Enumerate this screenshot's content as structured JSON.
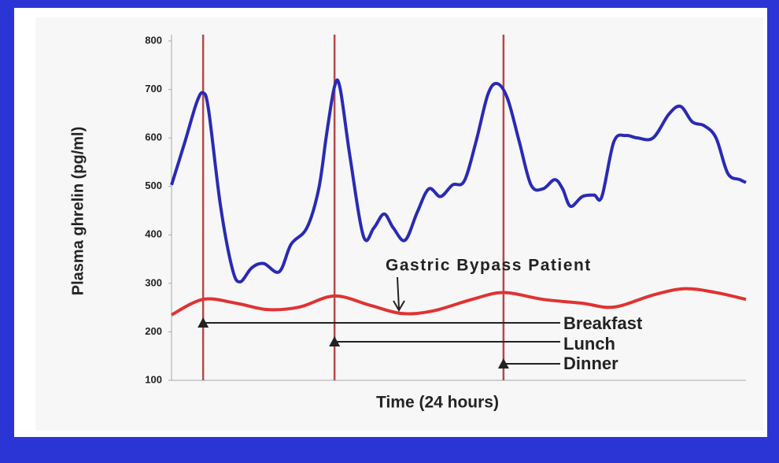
{
  "chart_data": {
    "type": "line",
    "y_label": "Plasma ghrelin (pg/ml)",
    "x_label": "Time (24 hours)",
    "xlim": [
      0,
      24
    ],
    "ylim": [
      100,
      800
    ],
    "yticks": [
      100,
      200,
      300,
      400,
      500,
      600,
      700,
      800
    ],
    "series": [
      {
        "color": "#2a2ab4",
        "x": [
          0,
          0.56,
          1.05,
          1.32,
          1.55,
          2.04,
          2.53,
          2.86,
          3.35,
          3.85,
          4.5,
          5.0,
          5.65,
          6.15,
          6.48,
          6.81,
          7.04,
          7.46,
          8.02,
          8.45,
          8.88,
          9.27,
          9.76,
          10.26,
          10.75,
          11.24,
          11.74,
          12.23,
          12.72,
          13.22,
          13.61,
          14.04,
          14.53,
          15.02,
          15.52,
          16.01,
          16.34,
          16.67,
          17.16,
          17.65,
          17.98,
          18.48,
          18.97,
          19.46,
          20.12,
          20.78,
          21.27,
          21.76,
          22.26,
          22.75,
          23.24,
          23.74,
          24
        ],
        "values": [
          503,
          592,
          673,
          693,
          657,
          462,
          332,
          303,
          332,
          341,
          324,
          381,
          414,
          495,
          608,
          706,
          703,
          560,
          397,
          414,
          443,
          414,
          389,
          446,
          495,
          479,
          503,
          511,
          592,
          690,
          712,
          681,
          592,
          503,
          495,
          514,
          495,
          459,
          479,
          482,
          479,
          592,
          605,
          600,
          600,
          649,
          665,
          633,
          625,
          600,
          527,
          514,
          508
        ]
      },
      {
        "name": "Gastric Bypass Patient",
        "color": "#e03232",
        "x": [
          0,
          1.32,
          2.7,
          4.01,
          5.33,
          6.81,
          8.28,
          9.6,
          10.91,
          12.56,
          13.87,
          15.52,
          17.16,
          18.48,
          20.12,
          21.44,
          22.75,
          24
        ],
        "values": [
          235,
          267,
          259,
          246,
          251,
          274,
          255,
          238,
          243,
          267,
          281,
          267,
          259,
          251,
          276,
          289,
          281,
          267
        ]
      }
    ],
    "annotations": [
      {
        "text": "Breakfast",
        "x": 1.32
      },
      {
        "text": "Lunch",
        "x": 6.81
      },
      {
        "text": "Dinner",
        "x": 13.87
      }
    ]
  }
}
